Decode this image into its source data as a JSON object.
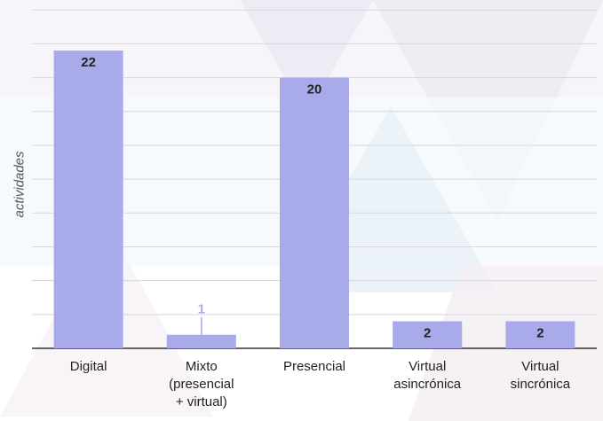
{
  "chart_data": {
    "type": "bar",
    "title": "",
    "xlabel": "",
    "ylabel": "actividades",
    "ylim": [
      0,
      25
    ],
    "grid": true,
    "bar_color": "#a8aaea",
    "label_inside_color": "#222222",
    "label_outside_color": "#a8aaea",
    "categories": [
      "Digital",
      "Mixto\n(presencial\n+ virtual)",
      "Presencial",
      "Virtual\nasincrónica",
      "Virtual\nsincrónica"
    ],
    "values": [
      22,
      1,
      20,
      2,
      2
    ],
    "data_labels": [
      "22",
      "1",
      "20",
      "2",
      "2"
    ]
  }
}
